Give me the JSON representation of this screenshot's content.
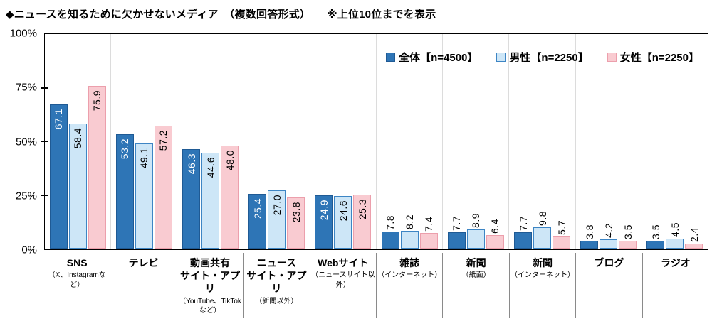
{
  "title": "◆ニュースを知るために欠かせないメディア　（複数回答形式）　　※上位10位までを表示",
  "y_axis": {
    "tick_labels": [
      "100%",
      "75%",
      "50%",
      "25%",
      "0%"
    ],
    "tick_values": [
      100,
      75,
      50,
      25,
      0
    ]
  },
  "legend": {
    "items": [
      {
        "label": "全体【n=4500】",
        "fill": "#2E75B6",
        "border": "#1F5A94",
        "label_color_inside": "#FFFFFF"
      },
      {
        "label": "男性【n=2250】",
        "fill": "#CDE6F7",
        "border": "#3D85C4",
        "label_color_inside": "#000000"
      },
      {
        "label": "女性【n=2250】",
        "fill": "#F9CBD1",
        "border": "#EC9FAC",
        "label_color_inside": "#000000"
      }
    ]
  },
  "chart_data": {
    "type": "bar",
    "title": "◆ニュースを知るために欠かせないメディア　（複数回答形式）　※上位10位までを表示",
    "ylabel": "%",
    "ylim": [
      0,
      100
    ],
    "yticks": [
      0,
      25,
      50,
      75,
      100
    ],
    "legend_position": "top-right inside plot",
    "grid": "vertical category separators only",
    "categories": [
      {
        "name": "SNS",
        "sub": "（X、Instagramなど）"
      },
      {
        "name": "テレビ",
        "sub": ""
      },
      {
        "name": "動画共有\nサイト・アプリ",
        "sub": "（YouTube、TikTokなど）"
      },
      {
        "name": "ニュース\nサイト・アプリ",
        "sub": "（新聞以外）"
      },
      {
        "name": "Webサイト",
        "sub": "（ニュースサイト以外）"
      },
      {
        "name": "雑誌",
        "sub": "（インターネット）"
      },
      {
        "name": "新聞",
        "sub": "（紙面）"
      },
      {
        "name": "新聞",
        "sub": "（インターネット）"
      },
      {
        "name": "ブログ",
        "sub": ""
      },
      {
        "name": "ラジオ",
        "sub": ""
      }
    ],
    "series": [
      {
        "name": "全体【n=4500】",
        "values": [
          67.1,
          53.2,
          46.3,
          25.4,
          24.9,
          7.8,
          7.7,
          7.7,
          3.8,
          3.5
        ]
      },
      {
        "name": "男性【n=2250】",
        "values": [
          58.4,
          49.1,
          44.6,
          27.0,
          24.6,
          8.2,
          8.9,
          9.8,
          4.2,
          4.5
        ]
      },
      {
        "name": "女性【n=2250】",
        "values": [
          75.9,
          57.2,
          48.0,
          23.8,
          25.3,
          7.4,
          6.4,
          5.7,
          3.5,
          2.4
        ]
      }
    ],
    "value_label_inside_threshold": 15
  }
}
